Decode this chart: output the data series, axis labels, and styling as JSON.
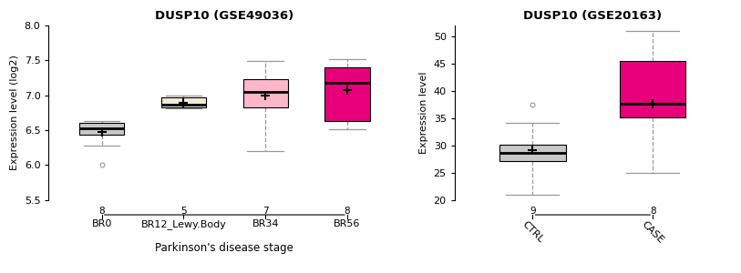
{
  "plot1": {
    "title": "DUSP10 (GSE49036)",
    "xlabel": "Parkinson's disease stage",
    "ylabel": "Expression level (log2)",
    "ylim": [
      5.5,
      8.0
    ],
    "yticks": [
      5.5,
      6.0,
      6.5,
      7.0,
      7.5,
      8.0
    ],
    "categories": [
      "BR0",
      "BR12_Lewy.Body",
      "BR34",
      "BR56"
    ],
    "n_labels": [
      "8",
      "5",
      "7",
      "8"
    ],
    "box_colors": [
      "#c8c8c8",
      "#eeeed8",
      "#ffb6c8",
      "#e8007a"
    ],
    "boxes": [
      {
        "q1": 6.43,
        "median": 6.525,
        "q3": 6.605,
        "mean": 6.48,
        "whislo": 6.28,
        "whishi": 6.635,
        "fliers": [
          6.01
        ]
      },
      {
        "q1": 6.83,
        "median": 6.872,
        "q3": 6.97,
        "mean": 6.89,
        "whislo": 6.815,
        "whishi": 6.995,
        "fliers": []
      },
      {
        "q1": 6.83,
        "median": 7.055,
        "q3": 7.225,
        "mean": 6.995,
        "whislo": 6.2,
        "whishi": 7.49,
        "fliers": []
      },
      {
        "q1": 6.625,
        "median": 7.185,
        "q3": 7.4,
        "mean": 7.07,
        "whislo": 6.51,
        "whishi": 7.52,
        "fliers": []
      }
    ]
  },
  "plot2": {
    "title": "DUSP10 (GSE20163)",
    "xlabel": "",
    "ylabel": "Expression level",
    "ylim": [
      20,
      52
    ],
    "yticks": [
      20,
      25,
      30,
      35,
      40,
      45,
      50
    ],
    "categories": [
      "CTRL",
      "CASE"
    ],
    "n_labels": [
      "9",
      "8"
    ],
    "box_colors": [
      "#c8c8c8",
      "#e8007a"
    ],
    "boxes": [
      {
        "q1": 27.2,
        "median": 28.6,
        "q3": 30.1,
        "mean": 29.1,
        "whislo": 21.0,
        "whishi": 34.2,
        "fliers": [
          37.5
        ]
      },
      {
        "q1": 35.2,
        "median": 37.6,
        "q3": 45.5,
        "mean": 37.6,
        "whislo": 25.0,
        "whishi": 51.0,
        "fliers": []
      }
    ]
  },
  "background_color": "#ffffff"
}
